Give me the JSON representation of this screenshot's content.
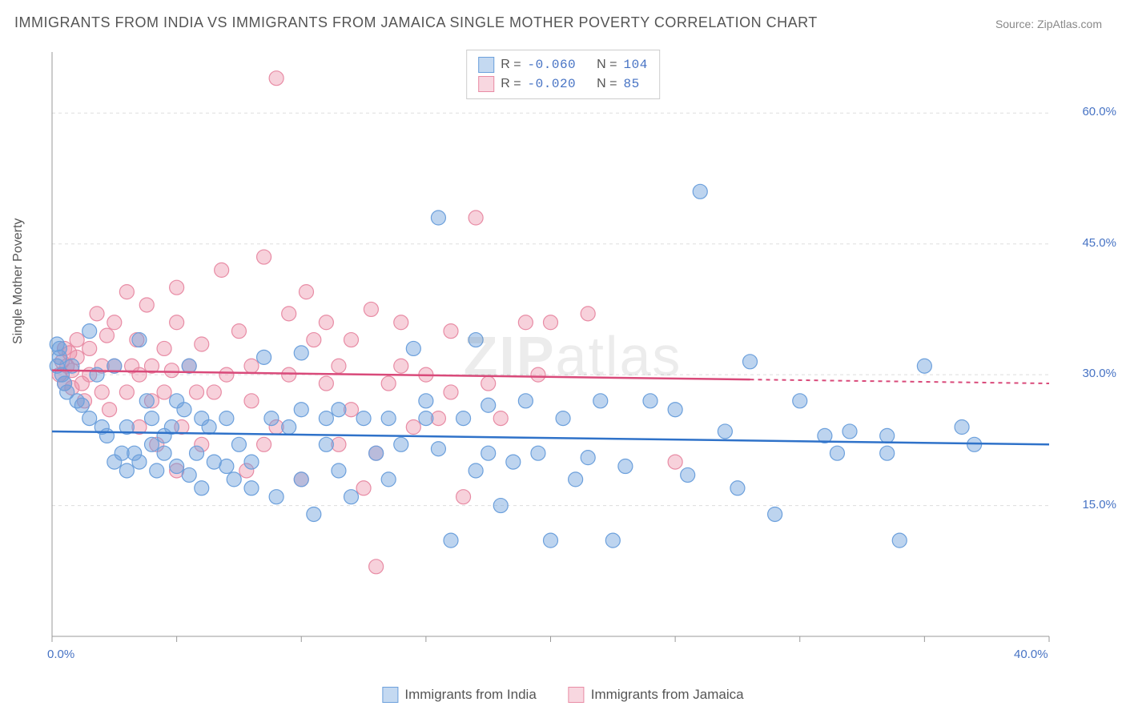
{
  "title": "IMMIGRANTS FROM INDIA VS IMMIGRANTS FROM JAMAICA SINGLE MOTHER POVERTY CORRELATION CHART",
  "source": "Source: ZipAtlas.com",
  "watermark_bold": "ZIP",
  "watermark_light": "atlas",
  "ylabel": "Single Mother Poverty",
  "chart": {
    "type": "scatter",
    "xlim": [
      0,
      40
    ],
    "ylim": [
      0,
      67
    ],
    "x_ticks": [
      0,
      40
    ],
    "x_tick_labels": [
      "0.0%",
      "40.0%"
    ],
    "y_ticks": [
      15,
      30,
      45,
      60
    ],
    "y_tick_labels": [
      "15.0%",
      "30.0%",
      "45.0%",
      "60.0%"
    ],
    "grid_color": "#dddddd",
    "axis_color": "#999999",
    "tick_label_color": "#4773c4",
    "background_color": "#ffffff"
  },
  "series": {
    "india": {
      "label": "Immigrants from India",
      "fill_color": "rgba(108,160,220,0.45)",
      "stroke_color": "#6ca0dc",
      "swatch_fill": "rgba(108,160,220,0.4)",
      "swatch_border": "#6ca0dc",
      "trend_color": "#2f72c9",
      "trend_y0": 23.5,
      "trend_y1": 22.0,
      "trend_solid_xend": 40,
      "marker_r": 9,
      "points": [
        [
          0.2,
          31
        ],
        [
          0.3,
          32
        ],
        [
          0.5,
          29
        ],
        [
          0.4,
          30
        ],
        [
          0.3,
          33
        ],
        [
          0.6,
          28
        ],
        [
          0.8,
          31
        ],
        [
          0.2,
          33.5
        ],
        [
          1,
          27
        ],
        [
          1.2,
          26.5
        ],
        [
          1.5,
          25
        ],
        [
          1.8,
          30
        ],
        [
          2,
          24
        ],
        [
          1.5,
          35
        ],
        [
          2.2,
          23
        ],
        [
          2.5,
          31
        ],
        [
          2.5,
          20
        ],
        [
          2.8,
          21
        ],
        [
          3,
          24
        ],
        [
          3,
          19
        ],
        [
          3.3,
          21
        ],
        [
          3.5,
          34
        ],
        [
          3.5,
          20
        ],
        [
          3.8,
          27
        ],
        [
          4,
          25
        ],
        [
          4,
          22
        ],
        [
          4.2,
          19
        ],
        [
          4.5,
          23
        ],
        [
          4.5,
          21
        ],
        [
          4.8,
          24
        ],
        [
          5,
          27
        ],
        [
          5,
          19.5
        ],
        [
          5.3,
          26
        ],
        [
          5.5,
          31
        ],
        [
          5.5,
          18.5
        ],
        [
          5.8,
          21
        ],
        [
          6,
          25
        ],
        [
          6,
          17
        ],
        [
          6.3,
          24
        ],
        [
          6.5,
          20
        ],
        [
          7,
          19.5
        ],
        [
          7,
          25
        ],
        [
          7.3,
          18
        ],
        [
          7.5,
          22
        ],
        [
          8,
          20
        ],
        [
          8,
          17
        ],
        [
          8.5,
          32
        ],
        [
          8.8,
          25
        ],
        [
          9,
          16
        ],
        [
          9.5,
          24
        ],
        [
          10,
          32.5
        ],
        [
          10,
          26
        ],
        [
          10,
          18
        ],
        [
          10.5,
          14
        ],
        [
          11,
          25
        ],
        [
          11,
          22
        ],
        [
          11.5,
          26
        ],
        [
          11.5,
          19
        ],
        [
          12,
          16
        ],
        [
          12.5,
          25
        ],
        [
          13,
          21
        ],
        [
          13.5,
          18
        ],
        [
          13.5,
          25
        ],
        [
          14,
          22
        ],
        [
          14.5,
          33
        ],
        [
          15,
          25
        ],
        [
          15,
          27
        ],
        [
          15.5,
          48
        ],
        [
          15.5,
          21.5
        ],
        [
          16,
          11
        ],
        [
          16.5,
          25
        ],
        [
          17,
          19
        ],
        [
          17,
          34
        ],
        [
          17.5,
          21
        ],
        [
          17.5,
          26.5
        ],
        [
          18,
          15
        ],
        [
          18.5,
          20
        ],
        [
          19,
          27
        ],
        [
          19.5,
          21
        ],
        [
          20,
          11
        ],
        [
          20.5,
          25
        ],
        [
          21,
          18
        ],
        [
          21.5,
          20.5
        ],
        [
          22,
          27
        ],
        [
          22.5,
          11
        ],
        [
          23,
          19.5
        ],
        [
          24,
          27
        ],
        [
          25,
          26
        ],
        [
          25.5,
          18.5
        ],
        [
          26,
          51
        ],
        [
          27,
          23.5
        ],
        [
          27.5,
          17
        ],
        [
          28,
          31.5
        ],
        [
          29,
          14
        ],
        [
          30,
          27
        ],
        [
          31,
          23
        ],
        [
          31.5,
          21
        ],
        [
          32,
          23.5
        ],
        [
          33.5,
          21
        ],
        [
          33.5,
          23
        ],
        [
          34,
          11
        ],
        [
          35,
          31
        ],
        [
          36.5,
          24
        ],
        [
          37,
          22
        ]
      ]
    },
    "jamaica": {
      "label": "Immigrants from Jamaica",
      "fill_color": "rgba(235,140,165,0.40)",
      "stroke_color": "#e88ca5",
      "swatch_fill": "rgba(235,140,165,0.35)",
      "swatch_border": "#e88ca5",
      "trend_color": "#d94a7a",
      "trend_y0": 30.5,
      "trend_y1": 29.0,
      "trend_solid_xend": 28,
      "marker_r": 9,
      "points": [
        [
          0.3,
          30
        ],
        [
          0.4,
          31.5
        ],
        [
          0.5,
          29
        ],
        [
          0.5,
          33
        ],
        [
          0.6,
          31
        ],
        [
          0.7,
          32.5
        ],
        [
          0.8,
          30.5
        ],
        [
          0.8,
          28.5
        ],
        [
          1,
          32
        ],
        [
          1,
          34
        ],
        [
          1.2,
          29
        ],
        [
          1.3,
          27
        ],
        [
          1.5,
          30
        ],
        [
          1.5,
          33
        ],
        [
          1.8,
          37
        ],
        [
          2,
          31
        ],
        [
          2,
          28
        ],
        [
          2.2,
          34.5
        ],
        [
          2.3,
          26
        ],
        [
          2.5,
          31
        ],
        [
          2.5,
          36
        ],
        [
          3,
          39.5
        ],
        [
          3,
          28
        ],
        [
          3.2,
          31
        ],
        [
          3.4,
          34
        ],
        [
          3.5,
          24
        ],
        [
          3.5,
          30
        ],
        [
          3.8,
          38
        ],
        [
          4,
          31
        ],
        [
          4,
          27
        ],
        [
          4.2,
          22
        ],
        [
          4.5,
          33
        ],
        [
          4.5,
          28
        ],
        [
          4.8,
          30.5
        ],
        [
          5,
          36
        ],
        [
          5,
          40
        ],
        [
          5,
          19
        ],
        [
          5.2,
          24
        ],
        [
          5.5,
          31
        ],
        [
          5.8,
          28
        ],
        [
          6,
          33.5
        ],
        [
          6,
          22
        ],
        [
          6.5,
          28
        ],
        [
          6.8,
          42
        ],
        [
          7,
          30
        ],
        [
          7.5,
          35
        ],
        [
          7.8,
          19
        ],
        [
          8,
          31
        ],
        [
          8,
          27
        ],
        [
          8.5,
          43.5
        ],
        [
          8.5,
          22
        ],
        [
          9,
          64
        ],
        [
          9,
          24
        ],
        [
          9.5,
          30
        ],
        [
          9.5,
          37
        ],
        [
          10,
          18
        ],
        [
          10.2,
          39.5
        ],
        [
          10.5,
          34
        ],
        [
          11,
          29
        ],
        [
          11,
          36
        ],
        [
          11.5,
          31
        ],
        [
          11.5,
          22
        ],
        [
          12,
          34
        ],
        [
          12,
          26
        ],
        [
          12.5,
          17
        ],
        [
          12.8,
          37.5
        ],
        [
          13,
          21
        ],
        [
          13.5,
          29
        ],
        [
          14,
          31
        ],
        [
          14,
          36
        ],
        [
          14.5,
          24
        ],
        [
          15,
          30
        ],
        [
          15.5,
          25
        ],
        [
          16,
          35
        ],
        [
          16,
          28
        ],
        [
          16.5,
          16
        ],
        [
          17,
          48
        ],
        [
          17.5,
          29
        ],
        [
          18,
          25
        ],
        [
          19,
          36
        ],
        [
          19.5,
          30
        ],
        [
          20,
          36
        ],
        [
          21.5,
          37
        ],
        [
          25,
          20
        ],
        [
          13,
          8
        ]
      ]
    }
  },
  "stats": [
    {
      "swatch_series": "india",
      "r_label": "R =",
      "r": "-0.060",
      "n_label": "N =",
      "n": "104"
    },
    {
      "swatch_series": "jamaica",
      "r_label": "R =",
      "r": "-0.020",
      "n_label": "N =",
      "n": " 85"
    }
  ],
  "legend": [
    {
      "series": "india"
    },
    {
      "series": "jamaica"
    }
  ]
}
